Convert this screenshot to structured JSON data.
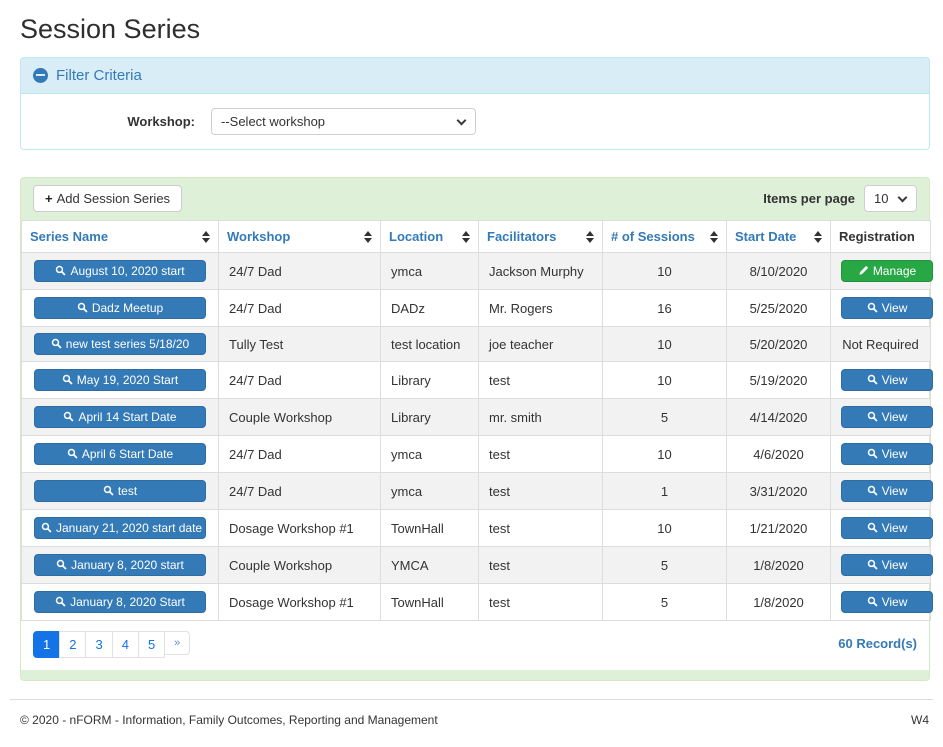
{
  "page": {
    "title": "Session Series"
  },
  "filter": {
    "title": "Filter Criteria",
    "workshop_label": "Workshop:",
    "workshop_value": "--Select workshop"
  },
  "toolbar": {
    "add_button": "Add Session Series",
    "items_per_page_label": "Items per page",
    "items_per_page_value": "10"
  },
  "table": {
    "columns": [
      {
        "key": "series_name",
        "label": "Series Name",
        "sortable": true
      },
      {
        "key": "workshop",
        "label": "Workshop",
        "sortable": true
      },
      {
        "key": "location",
        "label": "Location",
        "sortable": true
      },
      {
        "key": "facilitators",
        "label": "Facilitators",
        "sortable": true
      },
      {
        "key": "sessions",
        "label": "# of Sessions",
        "sortable": true
      },
      {
        "key": "start_date",
        "label": "Start Date",
        "sortable": true
      },
      {
        "key": "registration",
        "label": "Registration",
        "sortable": false
      }
    ],
    "rows": [
      {
        "series_name": "August 10, 2020 start",
        "workshop": "24/7 Dad",
        "location": "ymca",
        "facilitators": "Jackson Murphy",
        "sessions": "10",
        "start_date": "8/10/2020",
        "registration": {
          "type": "manage",
          "label": "Manage"
        }
      },
      {
        "series_name": "Dadz Meetup",
        "workshop": "24/7 Dad",
        "location": "DADz",
        "facilitators": "Mr. Rogers",
        "sessions": "16",
        "start_date": "5/25/2020",
        "registration": {
          "type": "view",
          "label": "View"
        }
      },
      {
        "series_name": "new test series 5/18/20",
        "workshop": "Tully Test",
        "location": "test location",
        "facilitators": "joe teacher",
        "sessions": "10",
        "start_date": "5/20/2020",
        "registration": {
          "type": "text",
          "label": "Not Required"
        }
      },
      {
        "series_name": "May 19, 2020 Start",
        "workshop": "24/7 Dad",
        "location": "Library",
        "facilitators": "test",
        "sessions": "10",
        "start_date": "5/19/2020",
        "registration": {
          "type": "view",
          "label": "View"
        }
      },
      {
        "series_name": "April 14 Start Date",
        "workshop": "Couple Workshop",
        "location": "Library",
        "facilitators": "mr. smith",
        "sessions": "5",
        "start_date": "4/14/2020",
        "registration": {
          "type": "view",
          "label": "View"
        }
      },
      {
        "series_name": "April 6 Start Date",
        "workshop": "24/7 Dad",
        "location": "ymca",
        "facilitators": "test",
        "sessions": "10",
        "start_date": "4/6/2020",
        "registration": {
          "type": "view",
          "label": "View"
        }
      },
      {
        "series_name": "test",
        "workshop": "24/7 Dad",
        "location": "ymca",
        "facilitators": "test",
        "sessions": "1",
        "start_date": "3/31/2020",
        "registration": {
          "type": "view",
          "label": "View"
        }
      },
      {
        "series_name": "January 21, 2020 start date",
        "workshop": "Dosage Workshop #1",
        "location": "TownHall",
        "facilitators": "test",
        "sessions": "10",
        "start_date": "1/21/2020",
        "registration": {
          "type": "view",
          "label": "View"
        }
      },
      {
        "series_name": "January 8, 2020 start",
        "workshop": "Couple Workshop",
        "location": "YMCA",
        "facilitators": "test",
        "sessions": "5",
        "start_date": "1/8/2020",
        "registration": {
          "type": "view",
          "label": "View"
        }
      },
      {
        "series_name": "January 8, 2020 Start",
        "workshop": "Dosage Workshop #1",
        "location": "TownHall",
        "facilitators": "test",
        "sessions": "5",
        "start_date": "1/8/2020",
        "registration": {
          "type": "view",
          "label": "View"
        }
      }
    ]
  },
  "pagination": {
    "pages": [
      "1",
      "2",
      "3",
      "4",
      "5",
      "»"
    ],
    "active": "1",
    "records_label": "60 Record(s)"
  },
  "footer": {
    "copyright": "© 2020 - nFORM - Information, Family Outcomes, Reporting and Management",
    "version": "W4"
  },
  "colors": {
    "accent_blue": "#337ab7",
    "success_green": "#28a745",
    "pagination_blue": "#1473e6",
    "panel_info_bg": "#d9edf7",
    "panel_success_bg": "#dff0d8",
    "stripe_gray": "#f2f2f2"
  }
}
